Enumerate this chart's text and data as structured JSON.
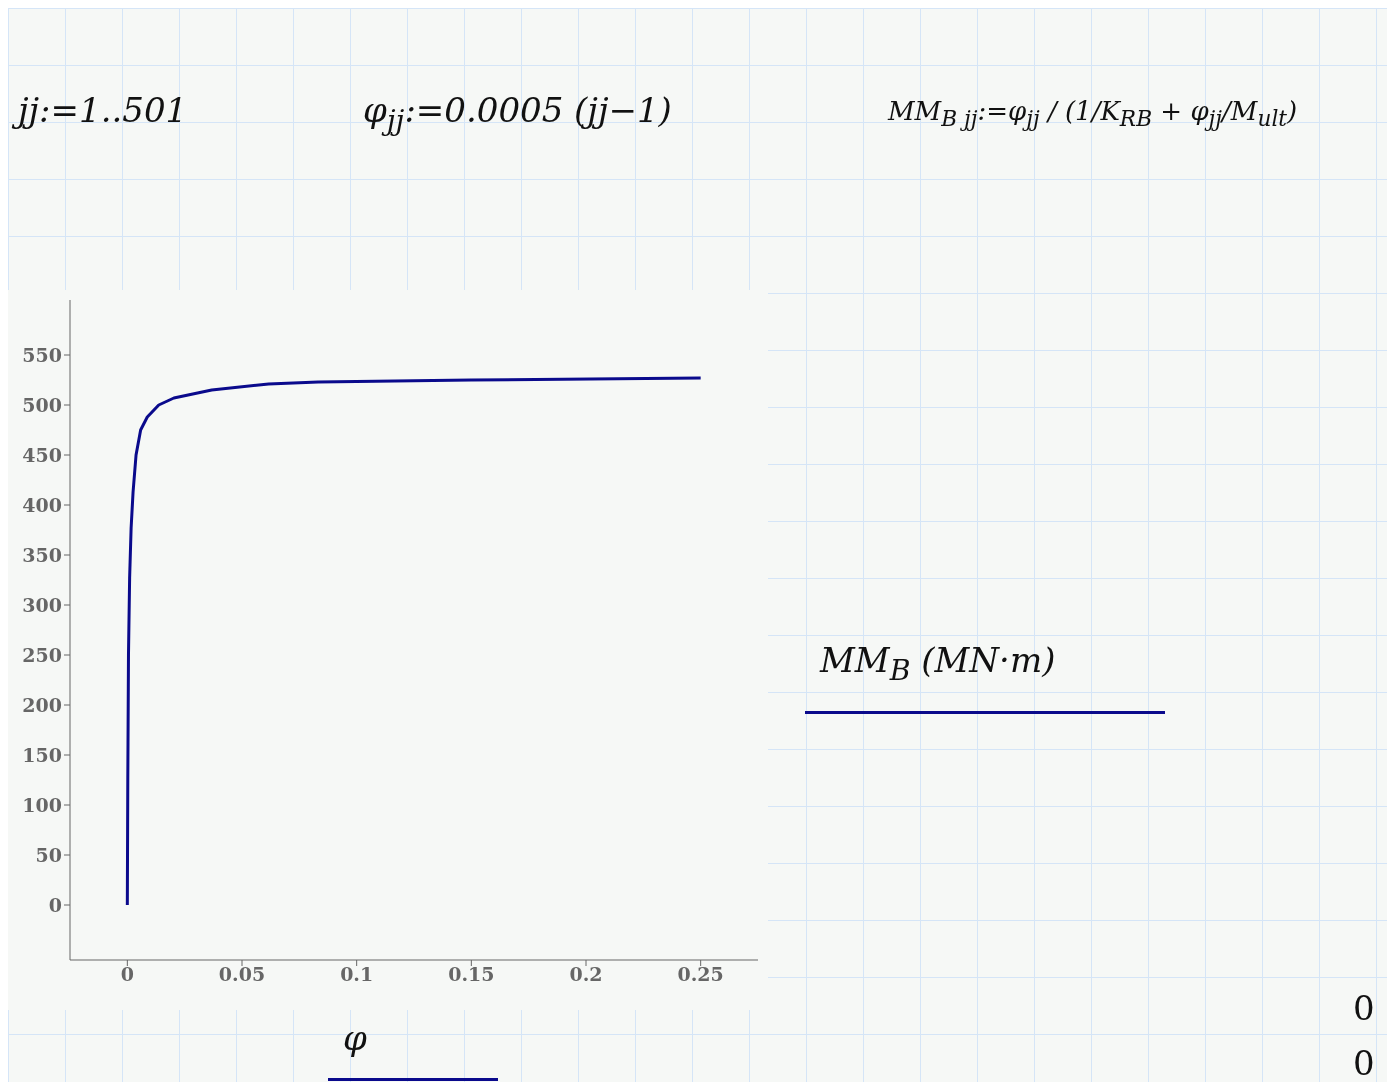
{
  "chart_data": {
    "type": "line",
    "xlabel": "φ",
    "ylabel": "MM$_{B}$ (MN·m)",
    "annotations": [
      "jj:=1..501",
      "φ$_{jj}$:=0.0005 (jj−1)",
      "MM$_{B jj}$:=φ$_{jj}$ / (1/K$_{RB}$ + φ$_{jj}$/M$_{ult}$)",
      "0",
      "0"
    ],
    "series": [
      {
        "color": "#0a0a8c",
        "x": [
          0,
          0.0002,
          0.0005,
          0.001,
          0.00165,
          0.0025,
          0.0038,
          0.0058,
          0.0087,
          0.0137,
          0.0203,
          0.0368,
          0.0616,
          0.0832,
          0.15,
          0.25
        ],
        "values": [
          0,
          124,
          250,
          327,
          377,
          413,
          450,
          475,
          488,
          500,
          507,
          515,
          521,
          523,
          525,
          527
        ]
      }
    ],
    "xlim": [
      -0.025,
      0.275
    ],
    "xticks": [
      0,
      0.05,
      0.1,
      0.15,
      0.2,
      0.25
    ],
    "ylim": [
      -55,
      605
    ],
    "yticks": [
      0,
      50,
      100,
      150,
      200,
      250,
      300,
      350,
      400,
      450,
      500,
      550
    ],
    "grid": false,
    "marker": "none",
    "line_style": "solid"
  }
}
